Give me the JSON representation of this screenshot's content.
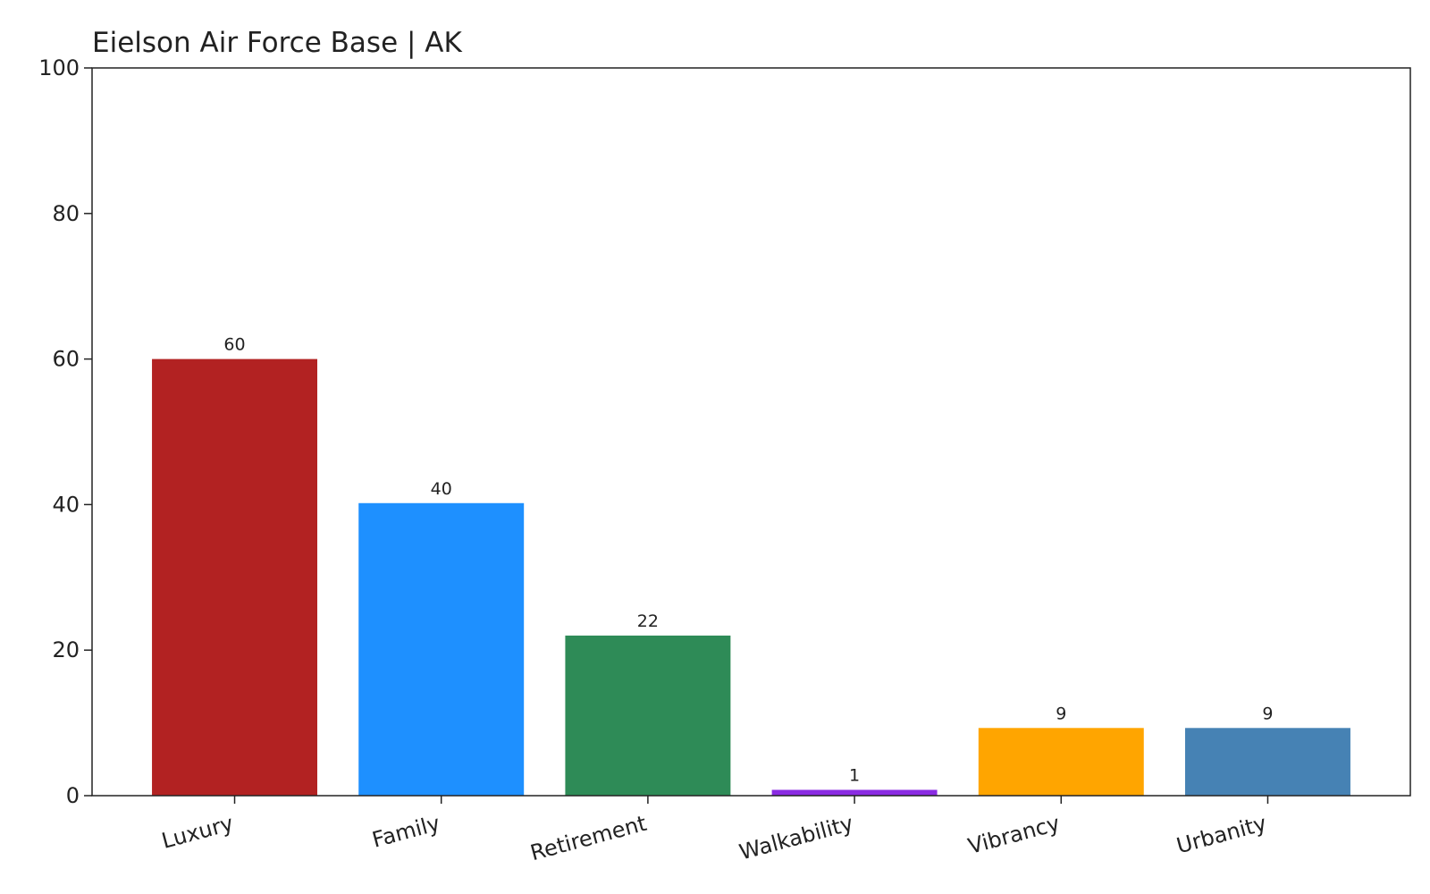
{
  "chart_data": {
    "type": "bar",
    "title": "Eielson Air Force Base | AK",
    "categories": [
      "Luxury",
      "Family",
      "Retirement",
      "Walkability",
      "Vibrancy",
      "Urbanity"
    ],
    "values": [
      60,
      40.2,
      22,
      0.8,
      9.3,
      9.3
    ],
    "value_labels": [
      "60",
      "40",
      "22",
      "1",
      "9",
      "9"
    ],
    "colors": [
      "#b22222",
      "#1e90ff",
      "#2e8b57",
      "#8a2be2",
      "#ffa500",
      "#4682b4"
    ],
    "ylim": [
      0,
      100
    ],
    "yticks": [
      0,
      20,
      40,
      60,
      80,
      100
    ],
    "grid": false
  }
}
